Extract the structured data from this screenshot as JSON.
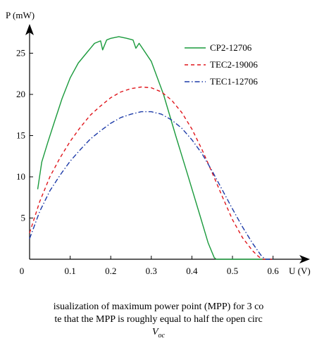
{
  "caption": {
    "line1": "isualization of maximum power point (MPP) for 3 co",
    "line2": "te that the MPP is roughly equal to half the open circ",
    "line3": "V_oc"
  },
  "chart_data": {
    "type": "line",
    "xlabel": "U (V)",
    "ylabel": "P (mW)",
    "xlim": [
      0,
      0.6
    ],
    "ylim": [
      0,
      28
    ],
    "xticks": [
      0,
      0.1,
      0.2,
      0.3,
      0.4,
      0.5,
      0.6
    ],
    "xtick_labels": [
      "0",
      "0.1",
      "0.2",
      "0.3",
      "0.4",
      "0.5",
      "0.6"
    ],
    "yticks": [
      5,
      10,
      15,
      20,
      25
    ],
    "ytick_labels": [
      "5",
      "10",
      "15",
      "20",
      "25"
    ],
    "grid": false,
    "legend_position": "top-right",
    "series": [
      {
        "name": "CP2-12706",
        "color": "#1a9a3c",
        "dash": "solid",
        "x": [
          0.02,
          0.03,
          0.045,
          0.06,
          0.08,
          0.1,
          0.12,
          0.14,
          0.16,
          0.175,
          0.18,
          0.19,
          0.2,
          0.22,
          0.24,
          0.255,
          0.262,
          0.27,
          0.3,
          0.33,
          0.36,
          0.39,
          0.42,
          0.44,
          0.455,
          0.46,
          0.48,
          0.5,
          0.6
        ],
        "y": [
          8.5,
          11.8,
          14.2,
          16.5,
          19.5,
          22.0,
          23.8,
          25.0,
          26.2,
          26.5,
          25.4,
          26.6,
          26.8,
          27.0,
          26.8,
          26.6,
          25.6,
          26.2,
          24.0,
          20.0,
          15.0,
          10.2,
          5.3,
          2.0,
          0.2,
          0.0,
          0.0,
          0.0,
          0.0
        ]
      },
      {
        "name": "TEC2-19006",
        "color": "#e0161c",
        "dash": "dashed",
        "x": [
          0.0,
          0.025,
          0.05,
          0.075,
          0.1,
          0.125,
          0.15,
          0.175,
          0.2,
          0.225,
          0.25,
          0.275,
          0.3,
          0.325,
          0.35,
          0.375,
          0.4,
          0.425,
          0.45,
          0.475,
          0.5,
          0.525,
          0.55,
          0.565,
          0.575,
          0.6
        ],
        "y": [
          3.2,
          7.0,
          10.0,
          12.3,
          14.3,
          16.0,
          17.5,
          18.6,
          19.6,
          20.3,
          20.7,
          20.9,
          20.8,
          20.3,
          19.3,
          17.8,
          15.8,
          13.3,
          10.5,
          7.6,
          4.8,
          2.6,
          1.0,
          0.3,
          0.0,
          0.0
        ]
      },
      {
        "name": "TEC1-12706",
        "color": "#1c3aa8",
        "dash": "dashdot",
        "x": [
          0.0,
          0.025,
          0.05,
          0.075,
          0.1,
          0.125,
          0.15,
          0.175,
          0.2,
          0.225,
          0.25,
          0.275,
          0.3,
          0.325,
          0.35,
          0.375,
          0.4,
          0.425,
          0.45,
          0.475,
          0.5,
          0.525,
          0.55,
          0.57,
          0.58,
          0.6
        ],
        "y": [
          2.5,
          5.8,
          8.3,
          10.2,
          11.9,
          13.3,
          14.6,
          15.6,
          16.5,
          17.2,
          17.6,
          17.9,
          17.9,
          17.6,
          16.9,
          15.9,
          14.5,
          12.8,
          10.7,
          8.4,
          6.1,
          3.9,
          1.9,
          0.5,
          0.0,
          0.0
        ]
      }
    ]
  }
}
